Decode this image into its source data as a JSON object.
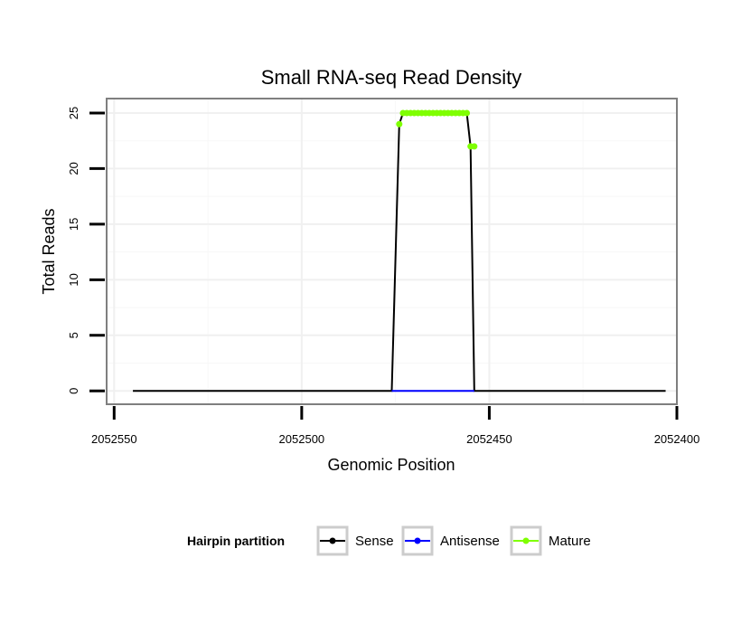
{
  "chart_data": {
    "type": "line",
    "title": "Small RNA-seq Read Density",
    "xlabel": "Genomic Position",
    "ylabel": "Total Reads",
    "x_reversed": true,
    "xlim": [
      2052552,
      2052400
    ],
    "ylim": [
      -1.2,
      26.3
    ],
    "x_ticks": [
      2052550,
      2052500,
      2052450,
      2052400
    ],
    "x_tick_labels": [
      "2052550",
      "2052500",
      "2052450",
      "2052400"
    ],
    "y_ticks": [
      0,
      5,
      10,
      15,
      20,
      25
    ],
    "y_tick_labels": [
      "0",
      "5",
      "10",
      "15",
      "20",
      "25"
    ],
    "grid": true,
    "legend": {
      "title": "Hairpin partition",
      "position": "bottom",
      "entries": [
        {
          "name": "Sense",
          "color": "#000000"
        },
        {
          "name": "Antisense",
          "color": "#0000ff"
        },
        {
          "name": "Mature",
          "color": "#7fff00"
        }
      ]
    },
    "series": [
      {
        "name": "Sense",
        "color": "#000000",
        "x": [
          2052545,
          2052476,
          2052474,
          2052473,
          2052456,
          2052455,
          2052454,
          2052403
        ],
        "y": [
          0,
          0,
          24,
          25,
          25,
          22,
          0,
          0
        ]
      },
      {
        "name": "Antisense",
        "color": "#0000ff",
        "x": [
          2052476,
          2052454
        ],
        "y": [
          0,
          0
        ]
      },
      {
        "name": "Mature",
        "color": "#7fff00",
        "x": [
          2052474,
          2052473,
          2052472,
          2052471,
          2052470,
          2052469,
          2052468,
          2052467,
          2052466,
          2052465,
          2052464,
          2052463,
          2052462,
          2052461,
          2052460,
          2052459,
          2052458,
          2052457,
          2052456,
          2052455,
          2052454
        ],
        "y": [
          24,
          25,
          25,
          25,
          25,
          25,
          25,
          25,
          25,
          25,
          25,
          25,
          25,
          25,
          25,
          25,
          25,
          25,
          25,
          22,
          22
        ]
      }
    ]
  }
}
